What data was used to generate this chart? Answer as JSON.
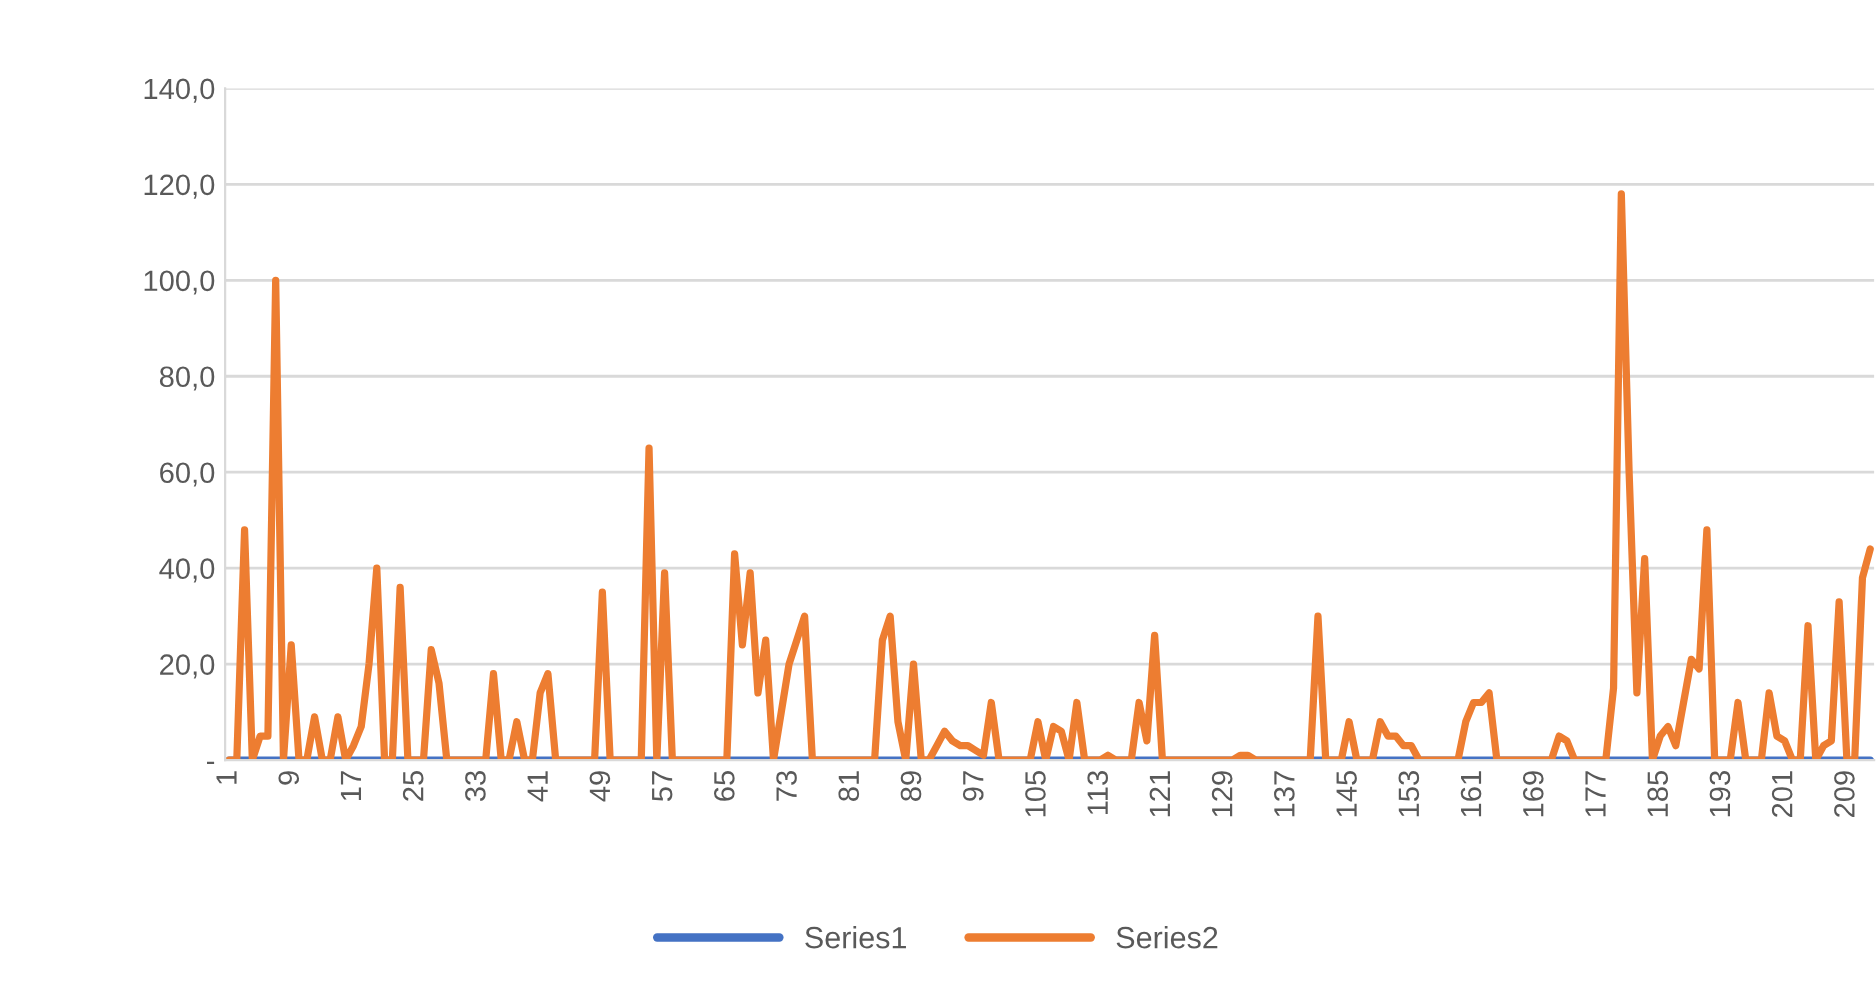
{
  "chart_data": {
    "type": "line",
    "categories": [
      "1",
      null,
      null,
      null,
      null,
      null,
      null,
      null,
      "9",
      null,
      null,
      null,
      null,
      null,
      null,
      null,
      "17",
      null,
      null,
      null,
      null,
      null,
      null,
      null,
      "25",
      null,
      null,
      null,
      null,
      null,
      null,
      null,
      "33",
      null,
      null,
      null,
      null,
      null,
      null,
      null,
      "41",
      null,
      null,
      null,
      null,
      null,
      null,
      null,
      "49",
      null,
      null,
      null,
      null,
      null,
      null,
      null,
      "57",
      null,
      null,
      null,
      null,
      null,
      null,
      null,
      "65",
      null,
      null,
      null,
      null,
      null,
      null,
      null,
      "73",
      null,
      null,
      null,
      null,
      null,
      null,
      null,
      "81",
      null,
      null,
      null,
      null,
      null,
      null,
      null,
      "89",
      null,
      null,
      null,
      null,
      null,
      null,
      null,
      "97",
      null,
      null,
      null,
      null,
      null,
      null,
      null,
      "105",
      null,
      null,
      null,
      null,
      null,
      null,
      null,
      "113",
      null,
      null,
      null,
      null,
      null,
      null,
      null,
      "121",
      null,
      null,
      null,
      null,
      null,
      null,
      null,
      "129",
      null,
      null,
      null,
      null,
      null,
      null,
      null,
      "137",
      null,
      null,
      null,
      null,
      null,
      null,
      null,
      "145",
      null,
      null,
      null,
      null,
      null,
      null,
      null,
      "153",
      null,
      null,
      null,
      null,
      null,
      null,
      null,
      "161",
      null,
      null,
      null,
      null,
      null,
      null,
      null,
      "169",
      null,
      null,
      null,
      null,
      null,
      null,
      null,
      "177",
      null,
      null,
      null,
      null,
      null,
      null,
      null,
      "185",
      null,
      null,
      null,
      null,
      null,
      null,
      null,
      "193",
      null,
      null,
      null,
      null,
      null,
      null,
      null,
      "201",
      null,
      null,
      null,
      null,
      null,
      null,
      null,
      "209",
      null,
      null,
      null
    ],
    "series": [
      {
        "name": "Series1",
        "color": "#4472c4",
        "values": [
          0,
          0,
          0,
          0,
          0,
          0,
          0,
          0,
          0,
          0,
          0,
          0,
          0,
          0,
          0,
          0,
          0,
          0,
          0,
          0,
          0,
          0,
          0,
          0,
          0,
          0,
          0,
          0,
          0,
          0,
          0,
          0,
          0,
          0,
          0,
          0,
          0,
          0,
          0,
          0,
          0,
          0,
          0,
          0,
          0,
          0,
          0,
          0,
          0,
          0,
          0,
          0,
          0,
          0,
          0,
          0,
          0,
          0,
          0,
          0,
          0,
          0,
          0,
          0,
          0,
          0,
          0,
          0,
          0,
          0,
          0,
          0,
          0,
          0,
          0,
          0,
          0,
          0,
          0,
          0,
          0,
          0,
          0,
          0,
          0,
          0,
          0,
          0,
          0,
          0,
          0,
          0,
          0,
          0,
          0,
          0,
          0,
          0,
          0,
          0,
          0,
          0,
          0,
          0,
          0,
          0,
          0,
          0,
          0,
          0,
          0,
          0,
          0,
          0,
          0,
          0,
          0,
          0,
          0,
          0,
          0,
          0,
          0,
          0,
          0,
          0,
          0,
          0,
          0,
          0,
          0,
          0,
          0,
          0,
          0,
          0,
          0,
          0,
          0,
          0,
          0,
          0,
          0,
          0,
          0,
          0,
          0,
          0,
          0,
          0,
          0,
          0,
          0,
          0,
          0,
          0,
          0,
          0,
          0,
          0,
          0,
          0,
          0,
          0,
          0,
          0,
          0,
          0,
          0,
          0,
          0,
          0,
          0,
          0,
          0,
          0,
          0,
          0,
          0,
          0,
          0,
          0,
          0,
          0,
          0,
          0,
          0,
          0,
          0,
          0,
          0,
          0,
          0,
          0,
          0,
          0,
          0,
          0,
          0,
          0,
          0,
          0,
          0,
          0,
          0,
          0,
          0,
          0,
          0,
          0,
          0,
          0
        ]
      },
      {
        "name": "Series2",
        "color": "#ed7d31",
        "values": [
          0,
          0,
          48,
          0,
          5,
          5,
          100,
          0,
          24,
          0,
          0,
          9,
          0,
          0,
          9,
          0,
          3,
          7,
          20,
          40,
          0,
          0,
          36,
          0,
          0,
          0,
          23,
          16,
          0,
          0,
          0,
          0,
          0,
          0,
          18,
          0,
          0,
          8,
          0,
          0,
          14,
          18,
          0,
          0,
          0,
          0,
          0,
          0,
          35,
          0,
          0,
          0,
          0,
          0,
          65,
          0,
          39,
          0,
          0,
          0,
          0,
          0,
          0,
          0,
          0,
          43,
          24,
          39,
          14,
          25,
          0,
          10,
          20,
          25,
          30,
          0,
          0,
          0,
          0,
          0,
          0,
          0,
          0,
          0,
          25,
          30,
          8,
          0,
          20,
          0,
          0,
          3,
          6,
          4,
          3,
          3,
          2,
          1,
          12,
          0,
          0,
          0,
          0,
          0,
          8,
          0,
          7,
          6,
          0,
          12,
          0,
          0,
          0,
          1,
          0,
          0,
          0,
          12,
          4,
          26,
          0,
          0,
          0,
          0,
          0,
          0,
          0,
          0,
          0,
          0,
          1,
          1,
          0,
          0,
          0,
          0,
          0,
          0,
          0,
          0,
          30,
          0,
          0,
          0,
          8,
          0,
          0,
          0,
          8,
          5,
          5,
          3,
          3,
          0,
          0,
          0,
          0,
          0,
          0,
          8,
          12,
          12,
          14,
          0,
          0,
          0,
          0,
          0,
          0,
          0,
          0,
          5,
          4,
          0,
          0,
          0,
          0,
          0,
          15,
          118,
          60,
          14,
          42,
          0,
          5,
          7,
          3,
          12,
          21,
          19,
          48,
          0,
          0,
          0,
          12,
          0,
          0,
          0,
          14,
          5,
          4,
          0,
          0,
          28,
          0,
          3,
          4,
          33,
          0,
          0,
          38,
          44
        ]
      }
    ],
    "ylim": [
      0,
      140
    ],
    "yticks": [
      {
        "value": 0,
        "label": "-"
      },
      {
        "value": 20,
        "label": "20,0"
      },
      {
        "value": 40,
        "label": "40,0"
      },
      {
        "value": 60,
        "label": "60,0"
      },
      {
        "value": 80,
        "label": "80,0"
      },
      {
        "value": 100,
        "label": "100,0"
      },
      {
        "value": 120,
        "label": "120,0"
      },
      {
        "value": 140,
        "label": "140,0"
      }
    ],
    "grid": "y",
    "legend": "bottom",
    "marker": "none",
    "line_style": "solid"
  }
}
